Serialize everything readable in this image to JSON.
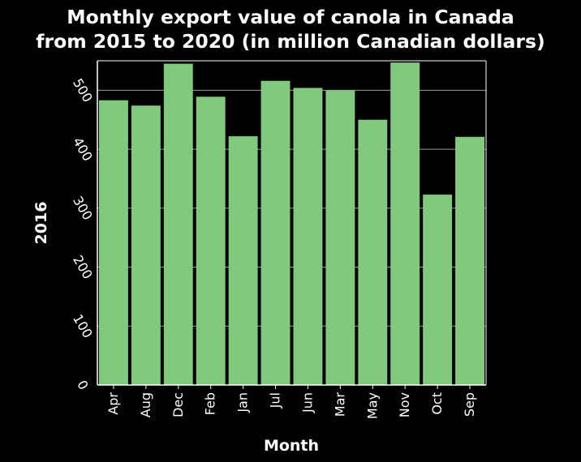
{
  "chart_data": {
    "type": "bar",
    "title_line1": "Monthly export value of canola in Canada",
    "title_line2": "from 2015 to 2020 (in million Canadian dollars)",
    "xlabel": "Month",
    "ylabel": "2016",
    "categories": [
      "Apr",
      "Aug",
      "Dec",
      "Feb",
      "Jan",
      "Jul",
      "Jun",
      "Mar",
      "May",
      "Nov",
      "Oct",
      "Sep"
    ],
    "values": [
      483,
      474,
      545,
      489,
      422,
      516,
      504,
      500,
      450,
      547,
      323,
      421
    ],
    "ylim": [
      0,
      550
    ],
    "yticks": [
      0,
      100,
      200,
      300,
      400,
      500
    ],
    "grid": true,
    "bar_color": "#80c97d",
    "background_color": "#000000",
    "text_color": "#ffffff",
    "grid_color": "#9a9a9a"
  }
}
